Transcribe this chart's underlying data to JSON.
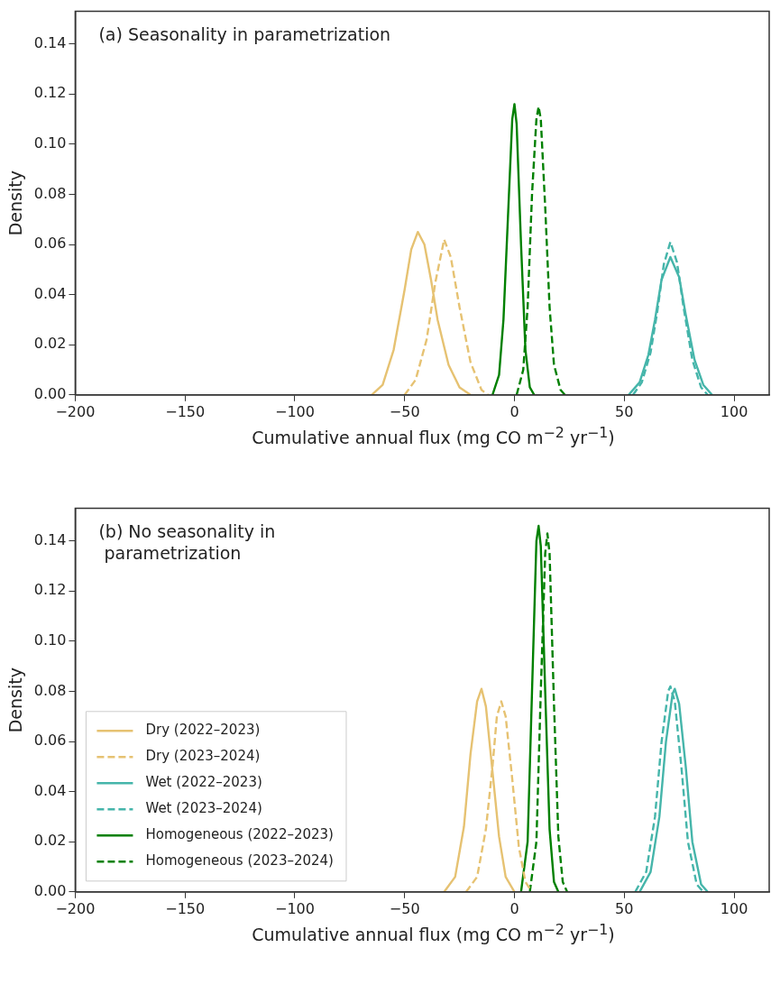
{
  "chart_data": [
    {
      "type": "line",
      "xlabel": "Cumulative annual flux (mg CO m$^{−2}$ yr$^{−1}$)",
      "ylabel": "Density",
      "annotations": [
        "(a) Seasonality in parametrization"
      ],
      "xlim": [
        -200,
        116
      ],
      "ylim": [
        0,
        0.153
      ],
      "xticks": [
        {
          "value": -200,
          "label": "−200"
        },
        {
          "value": -150,
          "label": "−150"
        },
        {
          "value": -100,
          "label": "−100"
        },
        {
          "value": -50,
          "label": "−50"
        },
        0,
        50,
        100
      ],
      "yticks": [
        {
          "value": 0,
          "label": "0.00"
        },
        {
          "value": 0.02,
          "label": "0.02"
        },
        {
          "value": 0.04,
          "label": "0.04"
        },
        {
          "value": 0.06,
          "label": "0.06"
        },
        {
          "value": 0.08,
          "label": "0.08"
        },
        {
          "value": 0.1,
          "label": "0.10"
        },
        {
          "value": 0.12,
          "label": "0.12"
        },
        {
          "value": 0.14,
          "label": "0.14"
        }
      ],
      "marker": "none",
      "series": [
        {
          "color": "#e6c272",
          "line_style": "solid",
          "x": [
            -65,
            -60,
            -55,
            -50,
            -47,
            -44,
            -41,
            -38,
            -35,
            -30,
            -25,
            -20
          ],
          "values": [
            0,
            0.004,
            0.018,
            0.042,
            0.058,
            0.065,
            0.06,
            0.046,
            0.03,
            0.012,
            0.003,
            0
          ]
        },
        {
          "color": "#e6c272",
          "line_style": "dashed",
          "x": [
            -50,
            -45,
            -40,
            -36,
            -32,
            -29,
            -25,
            -20,
            -15,
            -12
          ],
          "values": [
            0,
            0.006,
            0.022,
            0.045,
            0.062,
            0.055,
            0.035,
            0.013,
            0.002,
            0
          ]
        },
        {
          "color": "#45b5aa",
          "line_style": "solid",
          "x": [
            52,
            57,
            61,
            64,
            67,
            71,
            75,
            78,
            82,
            86,
            90
          ],
          "values": [
            0,
            0.005,
            0.016,
            0.03,
            0.046,
            0.055,
            0.047,
            0.032,
            0.014,
            0.004,
            0
          ]
        },
        {
          "color": "#45b5aa",
          "line_style": "dashed",
          "x": [
            54,
            58,
            62,
            65,
            68,
            71,
            74,
            77,
            81,
            85,
            88
          ],
          "values": [
            0,
            0.005,
            0.017,
            0.033,
            0.052,
            0.061,
            0.053,
            0.035,
            0.014,
            0.003,
            0
          ]
        },
        {
          "color": "#008000",
          "line_style": "solid",
          "x": [
            -10,
            -7,
            -5,
            -3,
            -1,
            0,
            1,
            3,
            5,
            7,
            9
          ],
          "values": [
            0,
            0.008,
            0.03,
            0.07,
            0.11,
            0.116,
            0.108,
            0.06,
            0.018,
            0.003,
            0
          ]
        },
        {
          "color": "#008000",
          "line_style": "dashed",
          "x": [
            1,
            4,
            6,
            8,
            10,
            11,
            12,
            14,
            16,
            18,
            21,
            23
          ],
          "values": [
            0,
            0.01,
            0.035,
            0.08,
            0.11,
            0.115,
            0.11,
            0.075,
            0.035,
            0.012,
            0.002,
            0
          ]
        }
      ]
    },
    {
      "type": "line",
      "xlabel": "Cumulative annual flux (mg CO m$^{−2}$ yr$^{−1}$)",
      "ylabel": "Density",
      "annotations": [
        "(b) No seasonality in\n parametrization"
      ],
      "xlim": [
        -200,
        116
      ],
      "ylim": [
        0,
        0.153
      ],
      "xticks": [
        {
          "value": -200,
          "label": "−200"
        },
        {
          "value": -150,
          "label": "−150"
        },
        {
          "value": -100,
          "label": "−100"
        },
        {
          "value": -50,
          "label": "−50"
        },
        0,
        50,
        100
      ],
      "yticks": [
        {
          "value": 0,
          "label": "0.00"
        },
        {
          "value": 0.02,
          "label": "0.02"
        },
        {
          "value": 0.04,
          "label": "0.04"
        },
        {
          "value": 0.06,
          "label": "0.06"
        },
        {
          "value": 0.08,
          "label": "0.08"
        },
        {
          "value": 0.1,
          "label": "0.10"
        },
        {
          "value": 0.12,
          "label": "0.12"
        },
        {
          "value": 0.14,
          "label": "0.14"
        }
      ],
      "marker": "none",
      "legend": "bottom left",
      "series": [
        {
          "name": "Dry (2022–2023)",
          "color": "#e6c272",
          "line_style": "solid",
          "x": [
            -32,
            -27,
            -23,
            -20,
            -17,
            -15,
            -13,
            -10,
            -7,
            -4,
            0
          ],
          "values": [
            0,
            0.006,
            0.026,
            0.055,
            0.076,
            0.081,
            0.074,
            0.048,
            0.022,
            0.006,
            0
          ]
        },
        {
          "name": "Dry (2023–2024)",
          "color": "#e6c272",
          "line_style": "dashed",
          "x": [
            -22,
            -17,
            -13,
            -10,
            -8,
            -6,
            -4,
            -1,
            2,
            5,
            8
          ],
          "values": [
            0,
            0.006,
            0.025,
            0.05,
            0.07,
            0.076,
            0.07,
            0.045,
            0.018,
            0.004,
            0
          ]
        },
        {
          "name": "Wet (2022–2023)",
          "color": "#45b5aa",
          "line_style": "solid",
          "x": [
            57,
            62,
            66,
            69,
            72,
            73,
            75,
            78,
            81,
            85,
            88
          ],
          "values": [
            0,
            0.008,
            0.03,
            0.06,
            0.079,
            0.081,
            0.075,
            0.05,
            0.02,
            0.003,
            0
          ]
        },
        {
          "name": "Wet (2023–2024)",
          "color": "#45b5aa",
          "line_style": "dashed",
          "x": [
            55,
            60,
            64,
            67,
            70,
            71,
            73,
            76,
            79,
            83,
            86
          ],
          "values": [
            0,
            0.008,
            0.03,
            0.06,
            0.08,
            0.082,
            0.076,
            0.05,
            0.02,
            0.003,
            0
          ]
        },
        {
          "name": "Homogeneous (2022–2023)",
          "color": "#008000",
          "line_style": "solid",
          "x": [
            3,
            6,
            8,
            10,
            11,
            12,
            14,
            16,
            18,
            20
          ],
          "values": [
            0,
            0.02,
            0.08,
            0.14,
            0.146,
            0.138,
            0.08,
            0.025,
            0.004,
            0
          ]
        },
        {
          "name": "Homogeneous (2023–2024)",
          "color": "#008000",
          "line_style": "dashed",
          "x": [
            7,
            10,
            12,
            14,
            15,
            16,
            18,
            20,
            22,
            24
          ],
          "values": [
            0,
            0.02,
            0.08,
            0.135,
            0.143,
            0.135,
            0.075,
            0.022,
            0.004,
            0
          ]
        }
      ]
    }
  ]
}
